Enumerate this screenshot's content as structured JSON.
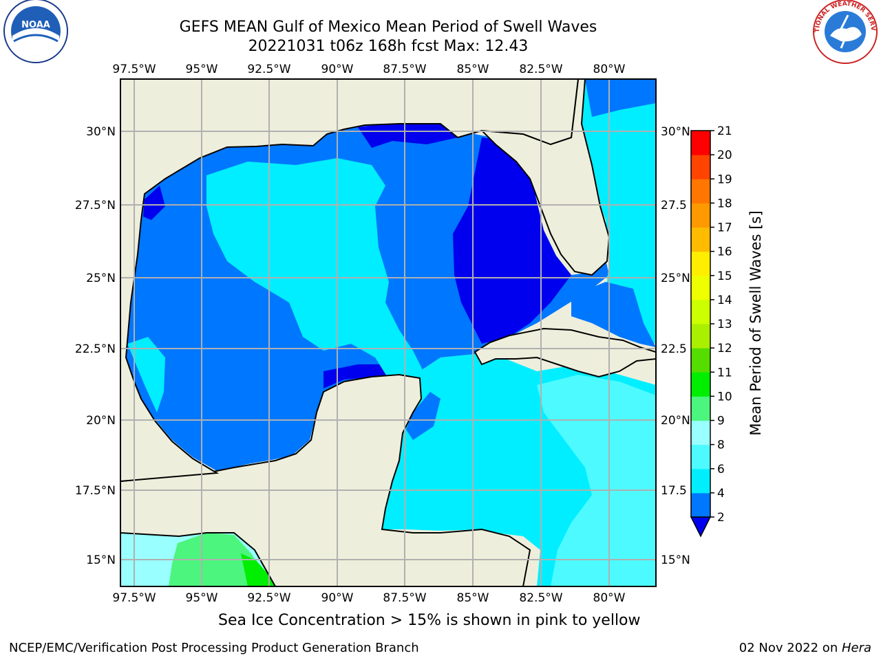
{
  "header": {
    "title_line1": "GEFS MEAN Gulf of Mexico Mean Period of Swell Waves",
    "title_line2": "20221031 t06z 168h fcst   Max: 12.43"
  },
  "logos": {
    "left_icon": "noaa-logo-icon",
    "left_text": "NOAA",
    "right_icon": "nws-logo-icon",
    "right_text": "NATIONAL WEATHER SERVICE"
  },
  "map": {
    "lon_labels": [
      "97.5°W",
      "95°W",
      "92.5°W",
      "90°W",
      "87.5°W",
      "85°W",
      "82.5°W",
      "80°W"
    ],
    "lat_labels_left": [
      "30°N",
      "27.5°N",
      "25°N",
      "22.5°N",
      "20°N",
      "17.5°N",
      "15°N"
    ],
    "lat_labels_right": [
      "30°N",
      "27.5",
      "25°N",
      "22.5",
      "20°N",
      "17.5",
      "15°N"
    ],
    "land_color": "#eeeedc",
    "grid_color": "#b0b0b0"
  },
  "colorbar": {
    "label": "Mean Period of Swell Waves [s]",
    "ticks": [
      "2",
      "4",
      "6",
      "8",
      "9",
      "10",
      "11",
      "12",
      "13",
      "14",
      "15",
      "16",
      "17",
      "18",
      "19",
      "20",
      "21"
    ],
    "colors": [
      "#0000ee",
      "#0077ff",
      "#00eeff",
      "#4dfaff",
      "#99ffff",
      "#4cf57d",
      "#00ee00",
      "#55dd00",
      "#aaee00",
      "#ccff00",
      "#eeff00",
      "#ffee00",
      "#ffbb00",
      "#ff9900",
      "#ff7700",
      "#ff4400",
      "#ff0000"
    ]
  },
  "footer": {
    "note": "Sea Ice Concentration > 15% is shown in pink to yellow",
    "left": "NCEP/EMC/Verification Post Processing Product Generation Branch",
    "right_prefix": "02 Nov 2022 on ",
    "right_host": "Hera"
  }
}
